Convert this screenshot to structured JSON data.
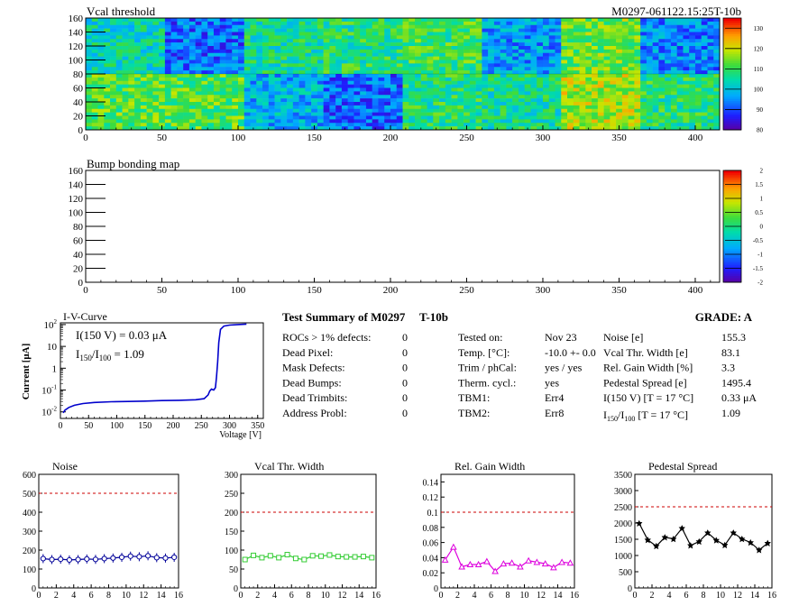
{
  "header": {
    "module_id": "M0297-061122.15:25T-10b"
  },
  "vcal_map": {
    "title": "Vcal threshold",
    "x_ticks": [
      "0",
      "50",
      "100",
      "150",
      "200",
      "250",
      "300",
      "350",
      "400"
    ],
    "y_ticks": [
      "0",
      "20",
      "40",
      "60",
      "80",
      "100",
      "120",
      "140",
      "160"
    ],
    "colorbar_ticks": [
      "80",
      "90",
      "100",
      "110",
      "120",
      "130"
    ],
    "zlim": [
      80,
      135
    ],
    "roc_means_top": [
      104,
      92,
      106,
      108,
      110,
      96,
      114,
      94
    ],
    "roc_means_bottom": [
      112,
      112,
      98,
      92,
      108,
      106,
      118,
      108
    ]
  },
  "bump_map": {
    "title": "Bump bonding map",
    "x_ticks": [
      "0",
      "50",
      "100",
      "150",
      "200",
      "250",
      "300",
      "350",
      "400"
    ],
    "y_ticks": [
      "0",
      "20",
      "40",
      "60",
      "80",
      "100",
      "120",
      "140",
      "160"
    ],
    "colorbar_ticks": [
      "2",
      "1.5",
      "1",
      "0.5",
      "0",
      "-0.5",
      "-1",
      "-1.5",
      "-2"
    ]
  },
  "iv_curve": {
    "title": "I-V-Curve",
    "ylabel": "Current [μA]",
    "xlabel": "Voltage [V]",
    "x_ticks": [
      "0",
      "50",
      "100",
      "150",
      "200",
      "250",
      "300",
      "350"
    ],
    "annot1": "I(150 V) = 0.03 μA",
    "annot2_pre": "I",
    "annot2_sub1": "150",
    "annot2_mid": "/I",
    "annot2_sub2": "100",
    "annot2_post": " =  1.09",
    "color": "#0000cc"
  },
  "summary": {
    "title": "Test Summary of M0297",
    "temp_label": "T-10b",
    "grade": "GRADE:  A",
    "left_labels": [
      "ROCs > 1% defects:",
      "Dead Pixel:",
      "Mask Defects:",
      "Dead Bumps:",
      "Dead Trimbits:",
      "Address Probl:"
    ],
    "left_values": [
      "0",
      "0",
      "0",
      "0",
      "0",
      "0"
    ],
    "mid_labels": [
      "Tested on:",
      "Temp. [°C]:",
      "Trim / phCal:",
      "Therm. cycl.:",
      "TBM1:",
      "TBM2:"
    ],
    "mid_values": [
      "Nov 23",
      "-10.0 +- 0.0",
      "yes / yes",
      "yes",
      "Err4",
      "Err8"
    ],
    "right_labels": [
      "Noise [e]",
      "Vcal Thr. Width [e]",
      "Rel. Gain Width [%]",
      "Pedestal Spread [e]",
      "I(150 V) [T = 17 °C]"
    ],
    "right_last_label_pre": "I",
    "right_last_label_sub1": "150",
    "right_last_label_mid": "/I",
    "right_last_label_sub2": "100",
    "right_last_label_post": "  [T = 17 °C]",
    "right_values": [
      "155.3",
      "83.1",
      "3.3",
      "1495.4",
      "0.33 μA",
      "1.09"
    ]
  },
  "chart_data": [
    {
      "type": "line",
      "title": "Noise",
      "x": [
        0.5,
        1.5,
        2.5,
        3.5,
        4.5,
        5.5,
        6.5,
        7.5,
        8.5,
        9.5,
        10.5,
        11.5,
        12.5,
        13.5,
        14.5,
        15.5
      ],
      "values": [
        155,
        150,
        152,
        148,
        150,
        153,
        151,
        155,
        158,
        162,
        168,
        165,
        170,
        160,
        158,
        162
      ],
      "ylim": [
        0,
        600
      ],
      "xlim": [
        0,
        16
      ],
      "y_ticks": [
        0,
        100,
        200,
        300,
        400,
        500,
        600
      ],
      "x_ticks": [
        0,
        2,
        4,
        6,
        8,
        10,
        12,
        14,
        16
      ],
      "threshold": 500,
      "color": "#000099",
      "marker": "circle"
    },
    {
      "type": "line",
      "title": "Vcal Thr. Width",
      "x": [
        0.5,
        1.5,
        2.5,
        3.5,
        4.5,
        5.5,
        6.5,
        7.5,
        8.5,
        9.5,
        10.5,
        11.5,
        12.5,
        13.5,
        14.5,
        15.5
      ],
      "values": [
        75,
        86,
        80,
        85,
        80,
        88,
        78,
        75,
        85,
        84,
        87,
        83,
        82,
        82,
        83,
        80
      ],
      "ylim": [
        0,
        300
      ],
      "xlim": [
        0,
        16
      ],
      "y_ticks": [
        0,
        50,
        100,
        150,
        200,
        250,
        300
      ],
      "x_ticks": [
        0,
        2,
        4,
        6,
        8,
        10,
        12,
        14,
        16
      ],
      "threshold": 200,
      "color": "#33cc33",
      "marker": "square"
    },
    {
      "type": "line",
      "title": "Rel. Gain Width",
      "x": [
        0.5,
        1.5,
        2.5,
        3.5,
        4.5,
        5.5,
        6.5,
        7.5,
        8.5,
        9.5,
        10.5,
        11.5,
        12.5,
        13.5,
        14.5,
        15.5
      ],
      "values": [
        0.037,
        0.054,
        0.028,
        0.031,
        0.031,
        0.035,
        0.022,
        0.032,
        0.033,
        0.028,
        0.036,
        0.034,
        0.032,
        0.027,
        0.034,
        0.033
      ],
      "ylim": [
        0,
        0.15
      ],
      "xlim": [
        0,
        16
      ],
      "y_ticks": [
        0,
        0.02,
        0.04,
        0.06,
        0.08,
        0.1,
        0.12,
        0.14
      ],
      "y_tick_labels": [
        "0",
        "0.02",
        "0.04",
        "0.06",
        "0.08",
        "0.1",
        "0.12",
        "0.14"
      ],
      "x_ticks": [
        0,
        2,
        4,
        6,
        8,
        10,
        12,
        14,
        16
      ],
      "threshold": 0.1,
      "color": "#dd00dd",
      "marker": "triangle"
    },
    {
      "type": "line",
      "title": "Pedestal Spread",
      "x": [
        0.5,
        1.5,
        2.5,
        3.5,
        4.5,
        5.5,
        6.5,
        7.5,
        8.5,
        9.5,
        10.5,
        11.5,
        12.5,
        13.5,
        14.5,
        15.5
      ],
      "values": [
        1990,
        1480,
        1290,
        1560,
        1510,
        1840,
        1310,
        1430,
        1700,
        1470,
        1320,
        1700,
        1510,
        1400,
        1170,
        1380
      ],
      "ylim": [
        0,
        3500
      ],
      "xlim": [
        0,
        16
      ],
      "y_ticks": [
        0,
        500,
        1000,
        1500,
        2000,
        2500,
        3000,
        3500
      ],
      "x_ticks": [
        0,
        2,
        4,
        6,
        8,
        10,
        12,
        14,
        16
      ],
      "threshold": 2500,
      "color": "#000000",
      "marker": "star"
    }
  ]
}
